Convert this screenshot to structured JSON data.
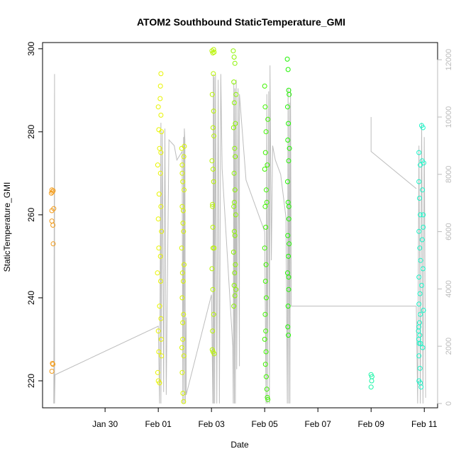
{
  "chart_data": {
    "type": "scatter",
    "title": "ATOM2 Southbound StaticTemperature_GMI",
    "xlabel": "Date",
    "ylabel": "StaticTemperature_GMI",
    "x_unit": "days since Jan 29 00:00",
    "xlim": [
      -1.35,
      13.5
    ],
    "ylim": [
      213.5,
      301.5
    ],
    "y2lim": [
      -150,
      12600
    ],
    "x_ticks": [
      {
        "value": 1,
        "label": "Jan 30"
      },
      {
        "value": 3,
        "label": "Feb 01"
      },
      {
        "value": 5,
        "label": "Feb 03"
      },
      {
        "value": 7,
        "label": "Feb 05"
      },
      {
        "value": 9,
        "label": "Feb 07"
      },
      {
        "value": 11,
        "label": "Feb 09"
      },
      {
        "value": 13,
        "label": "Feb 11"
      }
    ],
    "y_ticks": [
      {
        "value": 220,
        "label": "220"
      },
      {
        "value": 240,
        "label": "240"
      },
      {
        "value": 260,
        "label": "260"
      },
      {
        "value": 280,
        "label": "280"
      },
      {
        "value": 300,
        "label": "300"
      }
    ],
    "y2_ticks": [
      {
        "value": 0,
        "label": "0"
      },
      {
        "value": 2000,
        "label": "2000"
      },
      {
        "value": 4000,
        "label": "4000"
      },
      {
        "value": 6000,
        "label": "6000"
      },
      {
        "value": 8000,
        "label": "8000"
      },
      {
        "value": 10000,
        "label": "10000"
      },
      {
        "value": 12000,
        "label": "12000"
      }
    ],
    "grid": false,
    "legend": "none",
    "colors": {
      "axis": "#000000",
      "right_axis": "#bbbbbb",
      "altitude_line": "#bdbdbd"
    },
    "series": [
      {
        "color": "#f39c1a",
        "points": [
          [
            -1.0,
            266.0
          ],
          [
            -0.98,
            265.5
          ],
          [
            -1.02,
            265.2
          ],
          [
            -0.95,
            265.8
          ],
          [
            -1.0,
            261.0
          ],
          [
            -0.93,
            261.5
          ],
          [
            -1.0,
            258.5
          ],
          [
            -0.96,
            257.5
          ],
          [
            -0.95,
            253.0
          ],
          [
            -0.98,
            224.2
          ],
          [
            -0.96,
            224.0
          ],
          [
            -1.0,
            222.3
          ]
        ]
      },
      {
        "color": "#e8f400",
        "points": [
          [
            3.0,
            286.0
          ],
          [
            3.02,
            280.5
          ],
          [
            3.05,
            276.0
          ],
          [
            2.98,
            272.0
          ],
          [
            3.03,
            265.0
          ],
          [
            3.0,
            259.0
          ],
          [
            3.02,
            252.0
          ],
          [
            2.97,
            246.0
          ],
          [
            3.05,
            238.0
          ],
          [
            3.0,
            232.0
          ],
          [
            3.02,
            227.0
          ],
          [
            2.98,
            222.0
          ],
          [
            3.0,
            220.0
          ],
          [
            3.05,
            219.5
          ],
          [
            3.1,
            294.0
          ],
          [
            3.08,
            291.0
          ],
          [
            3.1,
            284.0
          ],
          [
            3.12,
            280.0
          ],
          [
            3.08,
            270.0
          ],
          [
            3.1,
            262.0
          ],
          [
            3.12,
            256.0
          ],
          [
            3.09,
            244.0
          ],
          [
            3.1,
            235.0
          ],
          [
            3.12,
            226.0
          ],
          [
            3.07,
            288.0
          ],
          [
            3.1,
            275.0
          ],
          [
            3.08,
            250.0
          ],
          [
            3.11,
            230.0
          ]
        ]
      },
      {
        "color": "#d8f400",
        "points": [
          [
            3.88,
            276.0
          ],
          [
            3.9,
            272.0
          ],
          [
            3.92,
            268.0
          ],
          [
            3.9,
            262.0
          ],
          [
            3.93,
            258.0
          ],
          [
            3.88,
            252.0
          ],
          [
            3.91,
            246.0
          ],
          [
            3.9,
            240.0
          ],
          [
            3.92,
            234.0
          ],
          [
            3.89,
            228.0
          ],
          [
            3.9,
            222.0
          ],
          [
            3.93,
            217.0
          ],
          [
            3.95,
            215.0
          ],
          [
            3.96,
            274.0
          ],
          [
            3.97,
            266.0
          ],
          [
            3.95,
            256.0
          ],
          [
            3.97,
            248.0
          ],
          [
            3.95,
            236.0
          ],
          [
            3.96,
            226.0
          ],
          [
            3.94,
            261.0
          ],
          [
            3.98,
            276.5
          ],
          [
            3.9,
            270.0
          ],
          [
            3.94,
            244.0
          ],
          [
            3.92,
            230.0
          ]
        ]
      },
      {
        "color": "#b8f400",
        "points": [
          [
            5.02,
            299.5
          ],
          [
            5.05,
            299.0
          ],
          [
            5.08,
            299.8
          ],
          [
            5.1,
            299.2
          ],
          [
            5.03,
            289.0
          ],
          [
            5.06,
            281.0
          ],
          [
            5.02,
            273.0
          ],
          [
            5.08,
            268.0
          ],
          [
            5.04,
            262.0
          ],
          [
            5.06,
            252.0
          ],
          [
            5.02,
            247.0
          ],
          [
            5.05,
            242.0
          ],
          [
            5.08,
            236.0
          ],
          [
            5.04,
            232.0
          ],
          [
            5.03,
            227.5
          ],
          [
            5.06,
            227.0
          ],
          [
            5.1,
            226.5
          ],
          [
            5.07,
            294.0
          ],
          [
            5.09,
            279.0
          ],
          [
            5.05,
            257.0
          ],
          [
            5.1,
            252.0
          ],
          [
            5.04,
            262.5
          ],
          [
            5.06,
            271.0
          ],
          [
            5.08,
            285.0
          ]
        ]
      },
      {
        "color": "#8cf400",
        "points": [
          [
            5.82,
            299.5
          ],
          [
            5.85,
            298.0
          ],
          [
            5.88,
            296.5
          ],
          [
            5.84,
            292.0
          ],
          [
            5.86,
            287.0
          ],
          [
            5.83,
            281.0
          ],
          [
            5.87,
            276.0
          ],
          [
            5.85,
            270.0
          ],
          [
            5.88,
            266.0
          ],
          [
            5.84,
            262.0
          ],
          [
            5.86,
            256.0
          ],
          [
            5.83,
            251.0
          ],
          [
            5.87,
            246.0
          ],
          [
            5.85,
            243.0
          ],
          [
            5.88,
            240.5
          ],
          [
            5.84,
            238.0
          ],
          [
            5.9,
            282.0
          ],
          [
            5.92,
            289.0
          ],
          [
            5.89,
            274.0
          ],
          [
            5.91,
            260.0
          ],
          [
            5.9,
            248.0
          ],
          [
            5.92,
            242.0
          ],
          [
            5.86,
            263.0
          ],
          [
            5.88,
            255.0
          ]
        ]
      },
      {
        "color": "#40f400",
        "points": [
          [
            7.0,
            291.0
          ],
          [
            7.02,
            286.0
          ],
          [
            7.05,
            280.0
          ],
          [
            7.03,
            275.0
          ],
          [
            7.0,
            271.0
          ],
          [
            7.06,
            266.0
          ],
          [
            7.02,
            262.0
          ],
          [
            7.04,
            257.0
          ],
          [
            7.0,
            252.0
          ],
          [
            7.05,
            248.0
          ],
          [
            7.03,
            244.0
          ],
          [
            7.06,
            240.0
          ],
          [
            7.02,
            236.0
          ],
          [
            7.04,
            232.0
          ],
          [
            7.0,
            230.0
          ],
          [
            7.05,
            227.0
          ],
          [
            7.03,
            224.0
          ],
          [
            7.06,
            221.0
          ],
          [
            7.08,
            218.0
          ],
          [
            7.1,
            216.0
          ],
          [
            7.12,
            215.5
          ],
          [
            7.08,
            263.0
          ],
          [
            7.1,
            272.0
          ],
          [
            7.12,
            283.0
          ]
        ]
      },
      {
        "color": "#20f400",
        "points": [
          [
            7.85,
            297.5
          ],
          [
            7.88,
            295.0
          ],
          [
            7.9,
            290.0
          ],
          [
            7.86,
            286.0
          ],
          [
            7.89,
            282.0
          ],
          [
            7.87,
            278.0
          ],
          [
            7.9,
            273.0
          ],
          [
            7.86,
            268.0
          ],
          [
            7.88,
            263.0
          ],
          [
            7.91,
            259.0
          ],
          [
            7.87,
            255.0
          ],
          [
            7.89,
            250.0
          ],
          [
            7.86,
            246.0
          ],
          [
            7.9,
            242.0
          ],
          [
            7.88,
            238.0
          ],
          [
            7.87,
            233.0
          ],
          [
            7.89,
            231.0
          ],
          [
            7.92,
            289.0
          ],
          [
            7.93,
            276.0
          ],
          [
            7.91,
            262.0
          ],
          [
            7.92,
            253.0
          ],
          [
            7.9,
            245.0
          ]
        ]
      },
      {
        "color": "#19f5a6",
        "points": [
          [
            11.0,
            221.5
          ],
          [
            11.02,
            220.0
          ],
          [
            11.0,
            218.5
          ],
          [
            11.03,
            221.0
          ]
        ]
      },
      {
        "color": "#19f5c8",
        "points": [
          [
            12.8,
            275.0
          ],
          [
            12.85,
            272.0
          ],
          [
            12.8,
            268.0
          ],
          [
            12.82,
            264.0
          ],
          [
            12.85,
            260.0
          ],
          [
            12.8,
            256.0
          ],
          [
            12.83,
            252.0
          ],
          [
            12.86,
            249.0
          ],
          [
            12.8,
            245.0
          ],
          [
            12.84,
            241.0
          ],
          [
            12.8,
            238.5
          ],
          [
            12.85,
            236.0
          ],
          [
            12.8,
            233.0
          ],
          [
            12.83,
            231.0
          ],
          [
            12.86,
            229.0
          ],
          [
            12.8,
            226.0
          ],
          [
            12.84,
            223.0
          ],
          [
            12.8,
            220.0
          ],
          [
            12.85,
            219.5
          ],
          [
            12.88,
            218.5
          ],
          [
            12.9,
            281.5
          ],
          [
            12.95,
            281.0
          ],
          [
            12.92,
            273.0
          ],
          [
            12.98,
            272.5
          ],
          [
            12.93,
            266.0
          ],
          [
            12.96,
            260.0
          ],
          [
            12.92,
            254.0
          ],
          [
            12.95,
            247.0
          ],
          [
            12.97,
            237.0
          ],
          [
            12.94,
            228.0
          ],
          [
            12.96,
            257.0
          ],
          [
            12.9,
            243.0
          ],
          [
            12.78,
            232.0
          ],
          [
            12.79,
            230.0
          ],
          [
            12.82,
            234.0
          ],
          [
            12.81,
            229.0
          ]
        ]
      }
    ],
    "altitude": [
      [
        -0.93,
        0
      ],
      [
        -0.9,
        11500
      ],
      [
        -0.9,
        0
      ],
      [
        -0.88,
        1000
      ],
      [
        3.0,
        2700
      ],
      [
        3.05,
        0
      ],
      [
        3.1,
        9800
      ],
      [
        3.1,
        0
      ],
      [
        3.15,
        9500
      ],
      [
        3.2,
        400
      ],
      [
        3.25,
        9600
      ],
      [
        3.3,
        300
      ],
      [
        3.4,
        9200
      ],
      [
        3.6,
        9000
      ],
      [
        3.7,
        8500
      ],
      [
        3.9,
        8800
      ],
      [
        3.92,
        0
      ],
      [
        3.95,
        9300
      ],
      [
        3.97,
        0
      ],
      [
        3.98,
        3300
      ],
      [
        3.98,
        9600
      ],
      [
        4.0,
        9200
      ],
      [
        4.02,
        0
      ],
      [
        4.05,
        3000
      ],
      [
        4.05,
        300
      ],
      [
        5.0,
        3800
      ],
      [
        5.05,
        0
      ],
      [
        5.07,
        11500
      ],
      [
        5.08,
        0
      ],
      [
        5.1,
        11400
      ],
      [
        5.12,
        0
      ],
      [
        5.15,
        11500
      ],
      [
        5.2,
        0
      ],
      [
        5.25,
        11300
      ],
      [
        5.3,
        0
      ],
      [
        5.35,
        11500
      ],
      [
        5.4,
        8200
      ],
      [
        5.8,
        2000
      ],
      [
        5.82,
        0
      ],
      [
        5.84,
        11200
      ],
      [
        5.86,
        0
      ],
      [
        5.88,
        11000
      ],
      [
        5.9,
        0
      ],
      [
        5.93,
        11300
      ],
      [
        5.95,
        1200
      ],
      [
        6.0,
        11000
      ],
      [
        6.05,
        1300
      ],
      [
        6.05,
        10800
      ],
      [
        6.3,
        7800
      ],
      [
        7.0,
        6000
      ],
      [
        7.05,
        0
      ],
      [
        7.08,
        10800
      ],
      [
        7.1,
        0
      ],
      [
        7.15,
        10900
      ],
      [
        7.18,
        0
      ],
      [
        7.2,
        11800
      ],
      [
        7.25,
        5000
      ],
      [
        7.3,
        9000
      ],
      [
        7.4,
        8500
      ],
      [
        7.6,
        8000
      ],
      [
        7.8,
        6500
      ],
      [
        7.85,
        0
      ],
      [
        7.88,
        11000
      ],
      [
        7.9,
        0
      ],
      [
        7.93,
        10500
      ],
      [
        7.95,
        0
      ],
      [
        7.97,
        11000
      ],
      [
        8.0,
        3400
      ],
      [
        9.0,
        3400
      ],
      [
        10.0,
        3400
      ],
      [
        11.0,
        3400
      ],
      [
        12.0,
        3400
      ],
      [
        12.7,
        3400
      ],
      [
        12.75,
        0
      ],
      [
        12.8,
        9000
      ],
      [
        12.85,
        0
      ],
      [
        12.9,
        9800
      ],
      [
        12.95,
        0
      ],
      [
        13.0,
        9300
      ],
      [
        13.05,
        200
      ]
    ],
    "altitude_gap_segment": [
      [
        11.0,
        10000
      ],
      [
        11.0,
        8800
      ],
      [
        12.7,
        7500
      ]
    ]
  }
}
